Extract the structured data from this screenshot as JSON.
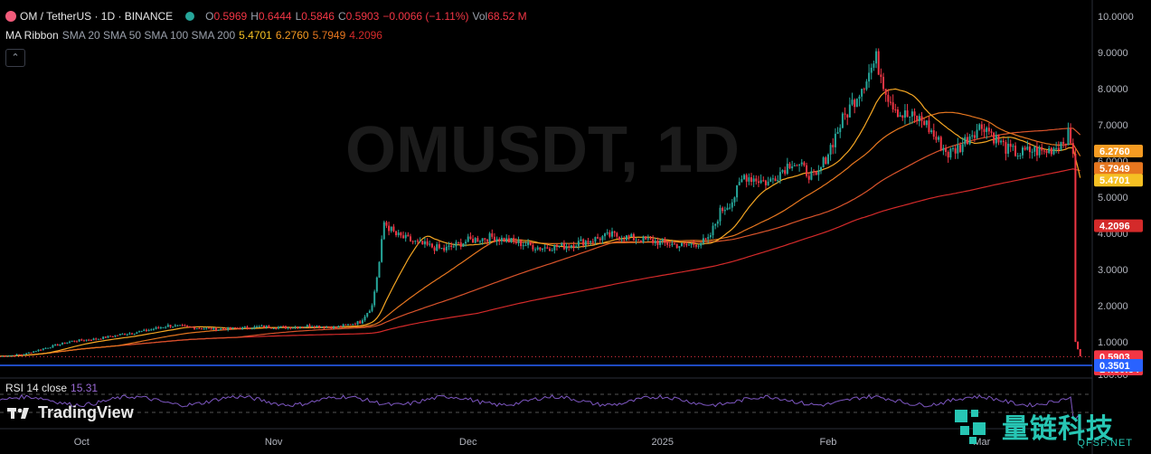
{
  "header": {
    "symbol": "OM / TetherUS · 1D · BINANCE",
    "open_label": "O",
    "open": "0.5969",
    "high_label": "H",
    "high": "0.6444",
    "low_label": "L",
    "low": "0.5846",
    "close_label": "C",
    "close": "0.5903",
    "change": "−0.0066 (−1.11%)",
    "vol_label": "Vol",
    "vol": "68.52 M"
  },
  "ma_legend": {
    "title": "MA Ribbon",
    "params": "SMA 20 SMA 50 SMA 100 SMA 200",
    "v1": "5.4701",
    "v2": "6.2760",
    "v3": "5.7949",
    "v4": "4.2096"
  },
  "rsi_legend": {
    "title": "RSI 14 close",
    "value": "15.31"
  },
  "watermark": "OMUSDT, 1D",
  "logo": "TradingView",
  "brand": {
    "cn": "量链科技",
    "site": "QFSP.NET"
  },
  "colors": {
    "up": "#26a69a",
    "down": "#f23645",
    "sma20": "#f5a623",
    "sma50": "#e6761f",
    "sma100": "#d9532b",
    "sma200": "#d42a2a",
    "support": "#2962ff"
  },
  "chart_data": {
    "type": "candlestick",
    "y_ticks": [
      "10.0000",
      "9.0000",
      "8.0000",
      "7.0000",
      "6.0000",
      "5.0000",
      "4.0000",
      "3.0000",
      "2.0000",
      "1.0000"
    ],
    "ylim": [
      0.2,
      10.2
    ],
    "x_ticks": [
      "Oct",
      "Nov",
      "Dec",
      "2025",
      "Feb",
      "Mar"
    ],
    "x_ticks_at_day": [
      34,
      114,
      195,
      276,
      345,
      409
    ],
    "price_labels": [
      {
        "text": "6.2760",
        "value": 6.276,
        "color": "#f59b22"
      },
      {
        "text": "5.7949",
        "value": 5.7949,
        "color": "#e6761f"
      },
      {
        "text": "5.4701",
        "value": 5.4701,
        "color": "#f5c023"
      },
      {
        "text": "4.2096",
        "value": 4.2096,
        "color": "#d42a2a"
      },
      {
        "text": "0.5903",
        "value": 0.5903,
        "color": "#f23645"
      },
      {
        "text": "14:30:34",
        "value": 0.25,
        "color": "#f23645"
      },
      {
        "text": "0.3501",
        "value": 0.3501,
        "color": "#2962ff"
      }
    ],
    "support_level": 0.3501,
    "close_points": [
      [
        0,
        0.6
      ],
      [
        10,
        0.66
      ],
      [
        20,
        0.85
      ],
      [
        30,
        1.02
      ],
      [
        40,
        1.08
      ],
      [
        50,
        1.2
      ],
      [
        60,
        1.3
      ],
      [
        70,
        1.45
      ],
      [
        80,
        1.4
      ],
      [
        90,
        1.35
      ],
      [
        100,
        1.38
      ],
      [
        110,
        1.42
      ],
      [
        120,
        1.4
      ],
      [
        130,
        1.45
      ],
      [
        140,
        1.4
      ],
      [
        150,
        1.55
      ],
      [
        155,
        2.0
      ],
      [
        158,
        3.2
      ],
      [
        160,
        4.3
      ],
      [
        165,
        3.95
      ],
      [
        175,
        3.7
      ],
      [
        185,
        3.55
      ],
      [
        195,
        3.8
      ],
      [
        205,
        3.9
      ],
      [
        215,
        3.75
      ],
      [
        225,
        3.6
      ],
      [
        235,
        3.65
      ],
      [
        245,
        3.8
      ],
      [
        255,
        3.95
      ],
      [
        265,
        3.85
      ],
      [
        275,
        3.75
      ],
      [
        285,
        3.65
      ],
      [
        295,
        3.8
      ],
      [
        300,
        4.6
      ],
      [
        305,
        4.9
      ],
      [
        310,
        5.6
      ],
      [
        320,
        5.4
      ],
      [
        330,
        6.0
      ],
      [
        340,
        5.5
      ],
      [
        350,
        7.0
      ],
      [
        355,
        7.6
      ],
      [
        360,
        8.2
      ],
      [
        365,
        8.8
      ],
      [
        370,
        7.8
      ],
      [
        375,
        7.3
      ],
      [
        380,
        7.2
      ],
      [
        385,
        7.1
      ],
      [
        390,
        6.6
      ],
      [
        395,
        6.2
      ],
      [
        400,
        6.4
      ],
      [
        405,
        6.8
      ],
      [
        410,
        7.0
      ],
      [
        415,
        6.6
      ],
      [
        420,
        6.3
      ],
      [
        425,
        6.2
      ],
      [
        430,
        6.3
      ],
      [
        435,
        6.25
      ],
      [
        440,
        6.4
      ],
      [
        445,
        6.7
      ],
      [
        447,
        6.2
      ],
      [
        448,
        1.0
      ],
      [
        450,
        0.6
      ]
    ]
  }
}
